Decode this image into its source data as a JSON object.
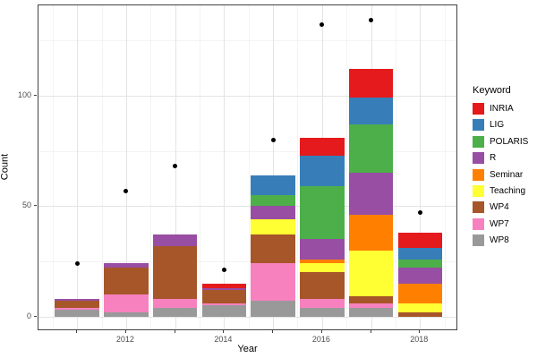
{
  "chart_data": {
    "type": "bar",
    "stacked": true,
    "overlay": "scatter",
    "title": "",
    "xlabel": "Year",
    "ylabel": "Count",
    "legend_title": "Keyword",
    "legend_position": "right",
    "grid": "major-and-minor",
    "categories": [
      "2011",
      "2012",
      "2013",
      "2014",
      "2015",
      "2016",
      "2017",
      "2018"
    ],
    "x_labeled_ticks": [
      "2012",
      "2014",
      "2016",
      "2018"
    ],
    "y_ticks": [
      0,
      50,
      100
    ],
    "y_tick_labels": [
      "0",
      "50",
      "100"
    ],
    "y_minor": [
      25,
      75,
      125
    ],
    "ylim": [
      -7,
      141
    ],
    "series": [
      {
        "name": "INRIA",
        "color": "#E41A1C",
        "values": [
          0,
          0,
          0,
          2,
          0,
          8,
          13,
          7
        ]
      },
      {
        "name": "LIG",
        "color": "#377EB8",
        "values": [
          0,
          0,
          0,
          0,
          9,
          14,
          12,
          5
        ]
      },
      {
        "name": "POLARIS",
        "color": "#4DAF4A",
        "values": [
          0,
          0,
          0,
          0,
          5,
          24,
          22,
          4
        ]
      },
      {
        "name": "R",
        "color": "#984EA3",
        "values": [
          1,
          2,
          5,
          1,
          6,
          9,
          19,
          7
        ]
      },
      {
        "name": "Seminar",
        "color": "#FF7F00",
        "values": [
          0,
          0,
          0,
          0,
          0,
          2,
          16,
          9
        ]
      },
      {
        "name": "Teaching",
        "color": "#FFFF33",
        "values": [
          0,
          0,
          0,
          0,
          7,
          4,
          21,
          4
        ]
      },
      {
        "name": "WP4",
        "color": "#A65628",
        "values": [
          3,
          12,
          24,
          6,
          13,
          12,
          3,
          2
        ]
      },
      {
        "name": "WP7",
        "color": "#F781BF",
        "values": [
          1,
          8,
          4,
          1,
          17,
          4,
          2,
          0
        ]
      },
      {
        "name": "WP8",
        "color": "#999999",
        "values": [
          3,
          2,
          4,
          5,
          7,
          4,
          4,
          0
        ]
      }
    ],
    "stack_order_bottom_to_top": [
      "WP8",
      "WP7",
      "WP4",
      "Teaching",
      "Seminar",
      "R",
      "POLARIS",
      "LIG",
      "INRIA"
    ],
    "bar_totals": [
      8,
      24,
      37,
      15,
      64,
      81,
      112,
      38
    ],
    "point_values": [
      24,
      57,
      68,
      21,
      80,
      132,
      134,
      47
    ],
    "point_color": "#000000",
    "colors": {
      "panel_background": "#ffffff",
      "panel_border": "#424242",
      "grid_major": "#e4e4e4",
      "grid_minor": "#f3f3f3",
      "axis_text": "#4d4d4d",
      "axis_title": "#000000"
    }
  }
}
